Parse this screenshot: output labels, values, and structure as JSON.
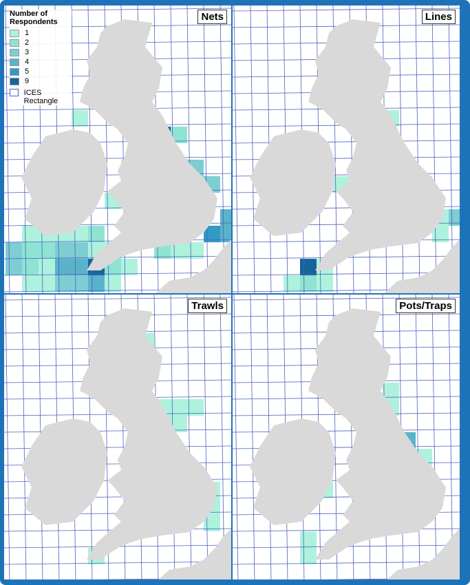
{
  "panels": [
    {
      "title": "Nets",
      "cells": [
        1,
        1,
        1,
        1,
        2,
        3,
        2,
        2,
        3,
        3,
        1,
        1,
        3,
        2,
        1,
        4,
        4,
        9,
        2,
        1,
        1,
        1,
        3,
        3,
        4,
        1,
        1,
        9,
        2,
        1,
        3,
        3,
        2,
        1,
        4,
        5,
        4,
        1,
        1,
        2
      ]
    },
    {
      "title": "Lines",
      "cells": [
        1,
        1,
        1,
        1,
        1,
        3,
        1,
        1,
        9,
        1,
        1,
        2,
        1
      ]
    },
    {
      "title": "Trawls",
      "cells": [
        1,
        1,
        1,
        1,
        1,
        1,
        1,
        1,
        1,
        1
      ]
    },
    {
      "title": "Pots/Traps",
      "cells": [
        1,
        1,
        4,
        1,
        1,
        1,
        1,
        1,
        1
      ]
    }
  ],
  "legend": {
    "title": "Number of Respondents",
    "items": [
      {
        "value": 1,
        "color": "#aef2dd"
      },
      {
        "value": 2,
        "color": "#8fe3d3"
      },
      {
        "value": 3,
        "color": "#7dcdd2"
      },
      {
        "value": 4,
        "color": "#5ab3cb"
      },
      {
        "value": 5,
        "color": "#3499c6"
      },
      {
        "value": 9,
        "color": "#17649c"
      }
    ],
    "outline_label": "ICES Rectangle"
  }
}
